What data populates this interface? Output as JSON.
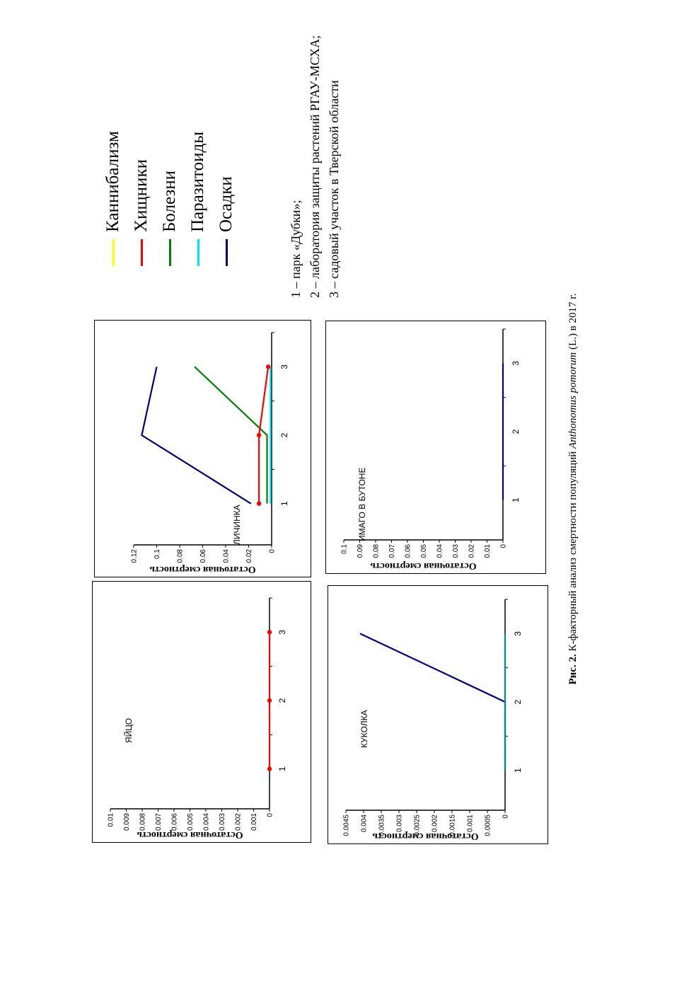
{
  "legend": [
    {
      "label": "Каннибализм",
      "color": "#ffff00"
    },
    {
      "label": "Хищники",
      "color": "#ff0000"
    },
    {
      "label": "Болезни",
      "color": "#008000"
    },
    {
      "label": "Паразитоиды",
      "color": "#00e5ff"
    },
    {
      "label": "Осадки",
      "color": "#000080"
    }
  ],
  "notes": [
    "1 – парк «Дубки»;",
    "2 – лаборатория защиты растений РГАУ-МСХА;",
    "3 – садовый участок в Тверской области"
  ],
  "caption": {
    "prefix": "Рис. 2.",
    "text_before": " К-факторный анализ смертности популяций ",
    "species": "Anthonomus pomorum",
    "text_after": " (L.) в 2017 г."
  },
  "chart_data": [
    {
      "type": "line",
      "title": "ЯЙЦО",
      "ylabel": "Остаточная смертность",
      "x": [
        1,
        2,
        3
      ],
      "ylim": [
        0,
        0.01
      ],
      "yticks": [
        "0",
        "0.001",
        "0.002",
        "0.003",
        "0.004",
        "0.005",
        "0.006",
        "0.007",
        "0.008",
        "0.009",
        "0.01"
      ],
      "series": [
        {
          "name": "Хищники",
          "color": "#ff0000",
          "values": [
            0,
            0,
            0
          ],
          "markers": true
        }
      ]
    },
    {
      "type": "line",
      "title": "ЛИЧИНКА",
      "ylabel": "Остаточная смертность",
      "x": [
        1,
        2,
        3
      ],
      "ylim": [
        0,
        0.12
      ],
      "yticks": [
        "0",
        "0.02",
        "0.04",
        "0.06",
        "0.08",
        "0.1",
        "0.12"
      ],
      "series": [
        {
          "name": "Осадки",
          "color": "#000080",
          "values": [
            0.018,
            0.113,
            0.1
          ],
          "markers": false
        },
        {
          "name": "Болезни",
          "color": "#008000",
          "values": [
            0.004,
            0.004,
            0.067
          ],
          "markers": false
        },
        {
          "name": "Паразитоиды",
          "color": "#00e5ff",
          "values": [
            0.001,
            0.001,
            0.001
          ],
          "markers": false
        },
        {
          "name": "Хищники",
          "color": "#ff0000",
          "values": [
            0.011,
            0.011,
            0.003
          ],
          "markers": true
        }
      ]
    },
    {
      "type": "line",
      "title": "КУКОЛКА",
      "ylabel": "Остаточная смертность",
      "x": [
        1,
        2,
        3
      ],
      "ylim": [
        0,
        0.0045
      ],
      "yticks": [
        "0",
        "0.0005",
        "0.001",
        "0.0015",
        "0.002",
        "0.0025",
        "0.003",
        "0.0035",
        "0.004",
        "0.0045"
      ],
      "series": [
        {
          "name": "Осадки",
          "color": "#000080",
          "values": [
            0,
            0,
            0.0041
          ],
          "markers": false
        },
        {
          "name": "Паразитоиды",
          "color": "#008b8b",
          "values": [
            0,
            0,
            0
          ],
          "markers": false
        }
      ]
    },
    {
      "type": "line",
      "title": "ИМАГО  В  БУТОНЕ",
      "ylabel": "Остаточная смертность",
      "x": [
        1,
        2,
        3
      ],
      "ylim": [
        0,
        0.1
      ],
      "yticks": [
        "0",
        "0.01",
        "0.02",
        "0.03",
        "0.04",
        "0.05",
        "0.06",
        "0.07",
        "0.08",
        "0.09",
        "0.1"
      ],
      "series": [
        {
          "name": "Осадки",
          "color": "#000080",
          "values": [
            0,
            0,
            0
          ],
          "markers": false
        }
      ]
    }
  ]
}
